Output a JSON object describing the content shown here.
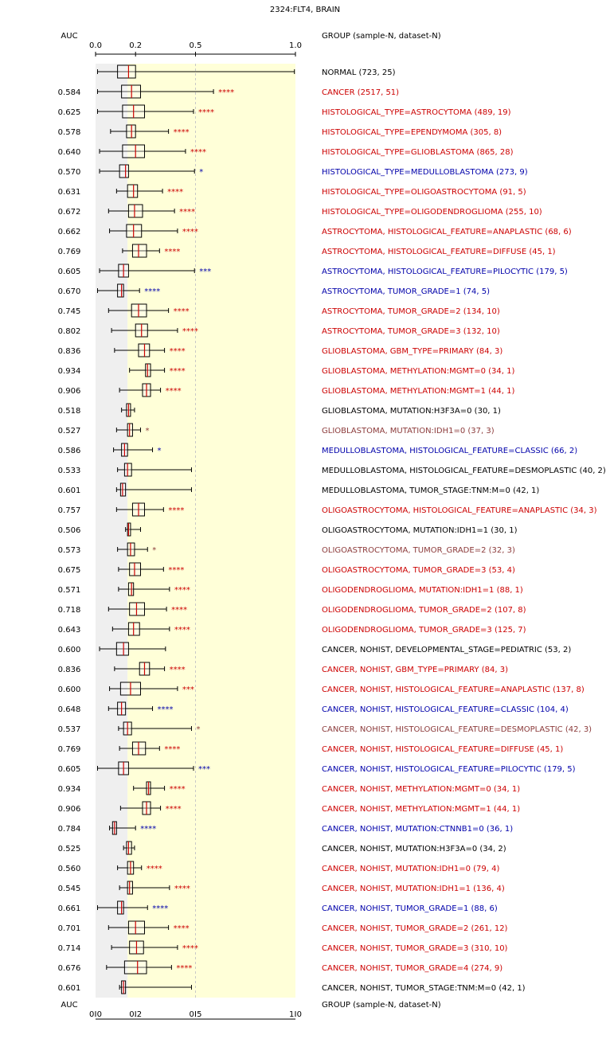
{
  "chart_data": {
    "type": "box",
    "title": "2324:FLT4, BRAIN",
    "auc_header": "AUC",
    "group_header": "GROUP (sample-N, dataset-N)",
    "x_ticks": [
      "0.0",
      "0.2",
      "0.5",
      "1.0"
    ],
    "xlim": [
      0,
      1
    ],
    "colors": {
      "up": "#cc0000",
      "down": "#0000aa",
      "neutral": "#000000",
      "faded": "#8b3a3a",
      "median": "#cc0000",
      "shade_gray": "#efefef",
      "shade_yellow": "#ffffd8"
    },
    "rows": [
      {
        "auc": "",
        "label": "NORMAL (723, 25)",
        "sig": "",
        "color": "neutral",
        "box": [
          0.01,
          0.11,
          0.165,
          0.2,
          0.995
        ]
      },
      {
        "auc": "0.584",
        "label": "CANCER (2517, 51)",
        "sig": "****",
        "color": "up",
        "box": [
          0.01,
          0.13,
          0.18,
          0.225,
          0.59
        ]
      },
      {
        "auc": "0.625",
        "label": "HISTOLOGICAL_TYPE=ASTROCYTOMA (489, 19)",
        "sig": "****",
        "color": "up",
        "box": [
          0.01,
          0.135,
          0.19,
          0.245,
          0.49
        ]
      },
      {
        "auc": "0.578",
        "label": "HISTOLOGICAL_TYPE=EPENDYMOMA (305, 8)",
        "sig": "****",
        "color": "up",
        "box": [
          0.075,
          0.155,
          0.18,
          0.2,
          0.365
        ]
      },
      {
        "auc": "0.640",
        "label": "HISTOLOGICAL_TYPE=GLIOBLASTOMA (865, 28)",
        "sig": "****",
        "color": "up",
        "box": [
          0.02,
          0.135,
          0.2,
          0.245,
          0.45
        ]
      },
      {
        "auc": "0.570",
        "label": "HISTOLOGICAL_TYPE=MEDULLOBLASTOMA (273, 9)",
        "sig": "*",
        "color": "down",
        "box": [
          0.02,
          0.12,
          0.15,
          0.165,
          0.495
        ]
      },
      {
        "auc": "0.631",
        "label": "HISTOLOGICAL_TYPE=OLIGOASTROCYTOMA (91, 5)",
        "sig": "****",
        "color": "up",
        "box": [
          0.105,
          0.16,
          0.19,
          0.21,
          0.335
        ]
      },
      {
        "auc": "0.672",
        "label": "HISTOLOGICAL_TYPE=OLIGODENDROGLIOMA (255, 10)",
        "sig": "****",
        "color": "up",
        "box": [
          0.065,
          0.165,
          0.195,
          0.235,
          0.395
        ]
      },
      {
        "auc": "0.662",
        "label": "ASTROCYTOMA, HISTOLOGICAL_FEATURE=ANAPLASTIC (68, 6)",
        "sig": "****",
        "color": "up",
        "box": [
          0.07,
          0.155,
          0.19,
          0.23,
          0.41
        ]
      },
      {
        "auc": "0.769",
        "label": "ASTROCYTOMA, HISTOLOGICAL_FEATURE=DIFFUSE (45, 1)",
        "sig": "****",
        "color": "up",
        "box": [
          0.135,
          0.185,
          0.215,
          0.255,
          0.32
        ]
      },
      {
        "auc": "0.605",
        "label": "ASTROCYTOMA, HISTOLOGICAL_FEATURE=PILOCYTIC (179, 5)",
        "sig": "***",
        "color": "down",
        "box": [
          0.02,
          0.115,
          0.14,
          0.165,
          0.495
        ]
      },
      {
        "auc": "0.670",
        "label": "ASTROCYTOMA, TUMOR_GRADE=1 (74, 5)",
        "sig": "****",
        "color": "down",
        "box": [
          0.01,
          0.11,
          0.13,
          0.14,
          0.22
        ]
      },
      {
        "auc": "0.745",
        "label": "ASTROCYTOMA, TUMOR_GRADE=2 (134, 10)",
        "sig": "****",
        "color": "up",
        "box": [
          0.065,
          0.18,
          0.215,
          0.255,
          0.365
        ]
      },
      {
        "auc": "0.802",
        "label": "ASTROCYTOMA, TUMOR_GRADE=3 (132, 10)",
        "sig": "****",
        "color": "up",
        "box": [
          0.08,
          0.2,
          0.23,
          0.26,
          0.41
        ]
      },
      {
        "auc": "0.836",
        "label": "GLIOBLASTOMA, GBM_TYPE=PRIMARY (84, 3)",
        "sig": "****",
        "color": "up",
        "box": [
          0.095,
          0.215,
          0.245,
          0.27,
          0.345
        ]
      },
      {
        "auc": "0.934",
        "label": "GLIOBLASTOMA, METHYLATION:MGMT=0 (34, 1)",
        "sig": "****",
        "color": "up",
        "box": [
          0.17,
          0.25,
          0.26,
          0.275,
          0.345
        ]
      },
      {
        "auc": "0.906",
        "label": "GLIOBLASTOMA, METHYLATION:MGMT=1 (44, 1)",
        "sig": "****",
        "color": "up",
        "box": [
          0.12,
          0.235,
          0.255,
          0.275,
          0.325
        ]
      },
      {
        "auc": "0.518",
        "label": "GLIOBLASTOMA, MUTATION:H3F3A=0 (30, 1)",
        "sig": "",
        "color": "neutral",
        "box": [
          0.13,
          0.155,
          0.165,
          0.175,
          0.195
        ]
      },
      {
        "auc": "0.527",
        "label": "GLIOBLASTOMA, MUTATION:IDH1=0 (37, 3)",
        "sig": "*",
        "color": "faded",
        "box": [
          0.105,
          0.16,
          0.17,
          0.185,
          0.225
        ]
      },
      {
        "auc": "0.586",
        "label": "MEDULLOBLASTOMA, HISTOLOGICAL_FEATURE=CLASSIC (66, 2)",
        "sig": "*",
        "color": "down",
        "box": [
          0.09,
          0.13,
          0.145,
          0.16,
          0.285
        ]
      },
      {
        "auc": "0.533",
        "label": "MEDULLOBLASTOMA, HISTOLOGICAL_FEATURE=DESMOPLASTIC (40, 2)",
        "sig": "",
        "color": "neutral",
        "box": [
          0.11,
          0.145,
          0.16,
          0.18,
          0.48
        ]
      },
      {
        "auc": "0.601",
        "label": "MEDULLOBLASTOMA, TUMOR_STAGE:TNM:M=0 (42, 1)",
        "sig": "",
        "color": "neutral",
        "box": [
          0.105,
          0.125,
          0.135,
          0.15,
          0.48
        ]
      },
      {
        "auc": "0.757",
        "label": "OLIGOASTROCYTOMA, HISTOLOGICAL_FEATURE=ANAPLASTIC (34, 3)",
        "sig": "****",
        "color": "up",
        "box": [
          0.105,
          0.185,
          0.215,
          0.245,
          0.34
        ]
      },
      {
        "auc": "0.506",
        "label": "OLIGOASTROCYTOMA, MUTATION:IDH1=1 (30, 1)",
        "sig": "",
        "color": "neutral",
        "box": [
          0.15,
          0.16,
          0.165,
          0.175,
          0.225
        ]
      },
      {
        "auc": "0.573",
        "label": "OLIGOASTROCYTOMA, TUMOR_GRADE=2 (32, 3)",
        "sig": "*",
        "color": "faded",
        "box": [
          0.11,
          0.16,
          0.175,
          0.195,
          0.26
        ]
      },
      {
        "auc": "0.675",
        "label": "OLIGOASTROCYTOMA, TUMOR_GRADE=3 (53, 4)",
        "sig": "****",
        "color": "up",
        "box": [
          0.115,
          0.17,
          0.195,
          0.225,
          0.34
        ]
      },
      {
        "auc": "0.571",
        "label": "OLIGODENDROGLIOMA, MUTATION:IDH1=1 (88, 1)",
        "sig": "****",
        "color": "up",
        "box": [
          0.115,
          0.165,
          0.18,
          0.19,
          0.37
        ]
      },
      {
        "auc": "0.718",
        "label": "OLIGODENDROGLIOMA, TUMOR_GRADE=2 (107, 8)",
        "sig": "****",
        "color": "up",
        "box": [
          0.065,
          0.17,
          0.205,
          0.245,
          0.355
        ]
      },
      {
        "auc": "0.643",
        "label": "OLIGODENDROGLIOMA, TUMOR_GRADE=3 (125, 7)",
        "sig": "****",
        "color": "up",
        "box": [
          0.085,
          0.165,
          0.19,
          0.22,
          0.37
        ]
      },
      {
        "auc": "0.600",
        "label": "CANCER, NOHIST, DEVELOPMENTAL_STAGE=PEDIATRIC (53, 2)",
        "sig": "",
        "color": "neutral",
        "box": [
          0.02,
          0.105,
          0.14,
          0.165,
          0.35
        ]
      },
      {
        "auc": "0.836",
        "label": "CANCER, NOHIST, GBM_TYPE=PRIMARY (84, 3)",
        "sig": "****",
        "color": "up",
        "box": [
          0.095,
          0.22,
          0.245,
          0.27,
          0.345
        ]
      },
      {
        "auc": "0.600",
        "label": "CANCER, NOHIST, HISTOLOGICAL_FEATURE=ANAPLASTIC (137, 8)",
        "sig": "***",
        "color": "up",
        "box": [
          0.07,
          0.125,
          0.175,
          0.225,
          0.41
        ]
      },
      {
        "auc": "0.648",
        "label": "CANCER, NOHIST, HISTOLOGICAL_FEATURE=CLASSIC (104, 4)",
        "sig": "****",
        "color": "down",
        "box": [
          0.065,
          0.11,
          0.13,
          0.15,
          0.285
        ]
      },
      {
        "auc": "0.537",
        "label": "CANCER, NOHIST, HISTOLOGICAL_FEATURE=DESMOPLASTIC (42, 3)",
        "sig": "*",
        "color": "faded",
        "box": [
          0.115,
          0.14,
          0.16,
          0.18,
          0.48
        ]
      },
      {
        "auc": "0.769",
        "label": "CANCER, NOHIST, HISTOLOGICAL_FEATURE=DIFFUSE (45, 1)",
        "sig": "****",
        "color": "up",
        "box": [
          0.12,
          0.185,
          0.215,
          0.25,
          0.32
        ]
      },
      {
        "auc": "0.605",
        "label": "CANCER, NOHIST, HISTOLOGICAL_FEATURE=PILOCYTIC (179, 5)",
        "sig": "***",
        "color": "down",
        "box": [
          0.01,
          0.115,
          0.14,
          0.165,
          0.49
        ]
      },
      {
        "auc": "0.934",
        "label": "CANCER, NOHIST, METHYLATION:MGMT=0 (34, 1)",
        "sig": "****",
        "color": "up",
        "box": [
          0.19,
          0.255,
          0.265,
          0.275,
          0.345
        ]
      },
      {
        "auc": "0.906",
        "label": "CANCER, NOHIST, METHYLATION:MGMT=1 (44, 1)",
        "sig": "****",
        "color": "up",
        "box": [
          0.125,
          0.235,
          0.255,
          0.275,
          0.325
        ]
      },
      {
        "auc": "0.784",
        "label": "CANCER, NOHIST, MUTATION:CTNNB1=0 (36, 1)",
        "sig": "****",
        "color": "down",
        "box": [
          0.07,
          0.085,
          0.095,
          0.105,
          0.2
        ]
      },
      {
        "auc": "0.525",
        "label": "CANCER, NOHIST, MUTATION:H3F3A=0 (34, 2)",
        "sig": "",
        "color": "neutral",
        "box": [
          0.14,
          0.155,
          0.165,
          0.18,
          0.195
        ]
      },
      {
        "auc": "0.560",
        "label": "CANCER, NOHIST, MUTATION:IDH1=0 (79, 4)",
        "sig": "****",
        "color": "up",
        "box": [
          0.11,
          0.16,
          0.175,
          0.19,
          0.23
        ]
      },
      {
        "auc": "0.545",
        "label": "CANCER, NOHIST, MUTATION:IDH1=1 (136, 4)",
        "sig": "****",
        "color": "up",
        "box": [
          0.12,
          0.16,
          0.17,
          0.185,
          0.37
        ]
      },
      {
        "auc": "0.661",
        "label": "CANCER, NOHIST, TUMOR_GRADE=1 (88, 6)",
        "sig": "****",
        "color": "down",
        "box": [
          0.01,
          0.11,
          0.13,
          0.14,
          0.26
        ]
      },
      {
        "auc": "0.701",
        "label": "CANCER, NOHIST, TUMOR_GRADE=2 (261, 12)",
        "sig": "****",
        "color": "up",
        "box": [
          0.065,
          0.165,
          0.2,
          0.245,
          0.365
        ]
      },
      {
        "auc": "0.714",
        "label": "CANCER, NOHIST, TUMOR_GRADE=3 (310, 10)",
        "sig": "****",
        "color": "up",
        "box": [
          0.08,
          0.17,
          0.205,
          0.24,
          0.41
        ]
      },
      {
        "auc": "0.676",
        "label": "CANCER, NOHIST, TUMOR_GRADE=4 (274, 9)",
        "sig": "****",
        "color": "up",
        "box": [
          0.055,
          0.145,
          0.21,
          0.255,
          0.38
        ]
      },
      {
        "auc": "0.601",
        "label": "CANCER, NOHIST, TUMOR_STAGE:TNM:M=0 (42, 1)",
        "sig": "",
        "color": "neutral",
        "box": [
          0.12,
          0.13,
          0.14,
          0.15,
          0.48
        ]
      }
    ]
  }
}
